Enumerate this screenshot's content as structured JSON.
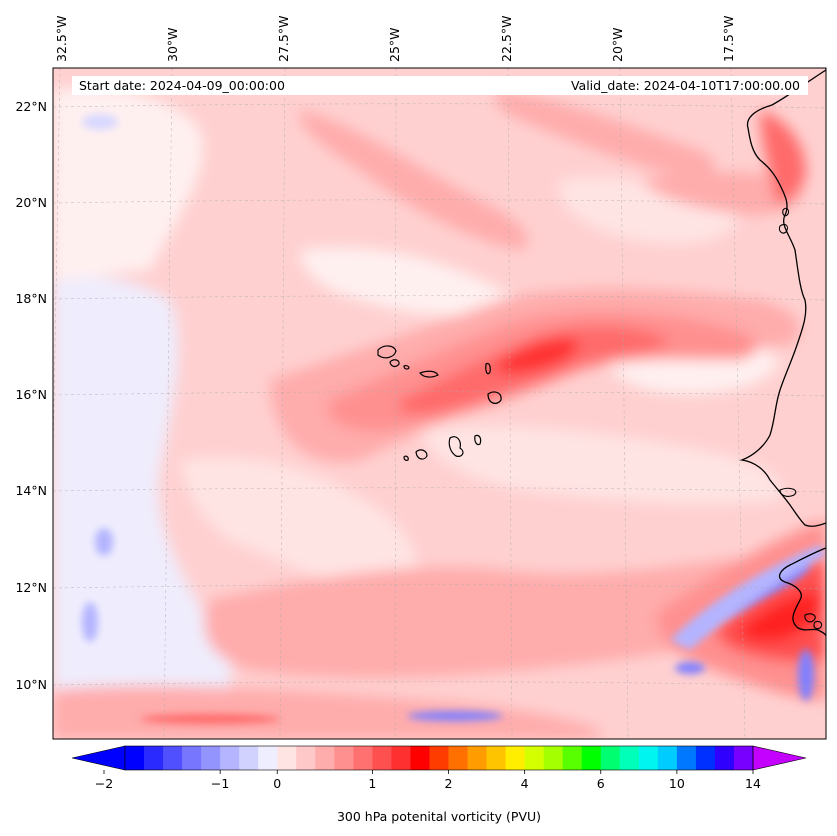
{
  "info": {
    "start_date": "Start date: 2024-04-09_00:00:00",
    "valid_date": "Valid_date: 2024-04-10T17:00:00.00"
  },
  "longitude_labels": [
    "32.5°W",
    "30°W",
    "27.5°W",
    "25°W",
    "22.5°W",
    "20°W",
    "17.5°W"
  ],
  "latitude_labels": [
    "22°N",
    "20°N",
    "18°N",
    "16°N",
    "14°N",
    "12°N",
    "10°N"
  ],
  "colorbar": {
    "label": "300 hPa potenital vorticity (PVU)",
    "tick_labels": [
      "−2",
      "−1",
      "0",
      "1",
      "2",
      "4",
      "6",
      "10",
      "14"
    ],
    "colors": [
      "#0000ff",
      "#2a2aff",
      "#5050ff",
      "#7676ff",
      "#9494ff",
      "#b4b4ff",
      "#d2d2ff",
      "#eeeeff",
      "#ffe4e4",
      "#ffc8c8",
      "#ffacac",
      "#ff9090",
      "#ff7070",
      "#ff5050",
      "#ff3030",
      "#ff0000",
      "#ff3c00",
      "#ff7000",
      "#ff9c00",
      "#ffc400",
      "#ffee00",
      "#d4ff00",
      "#a4ff00",
      "#58ff00",
      "#00ff00",
      "#00ff70",
      "#00ffb8",
      "#00f4f0",
      "#00ccff",
      "#0078ff",
      "#0030ff",
      "#3000ff",
      "#7800ff"
    ],
    "under_color": "#0000ff",
    "over_color": "#c400ff"
  },
  "field_colors": {
    "bg_pink": "#ffd0d0",
    "light_pink": "#ffe4e4",
    "very_light": "#fff0f0",
    "pale_blue": "#eeeeff",
    "mid_pink": "#ffacac",
    "salmon": "#ff9090",
    "red": "#ff6a6a",
    "deep_red": "#ff3030",
    "blue": "#8080ff",
    "light_blue": "#b4b4ff"
  }
}
